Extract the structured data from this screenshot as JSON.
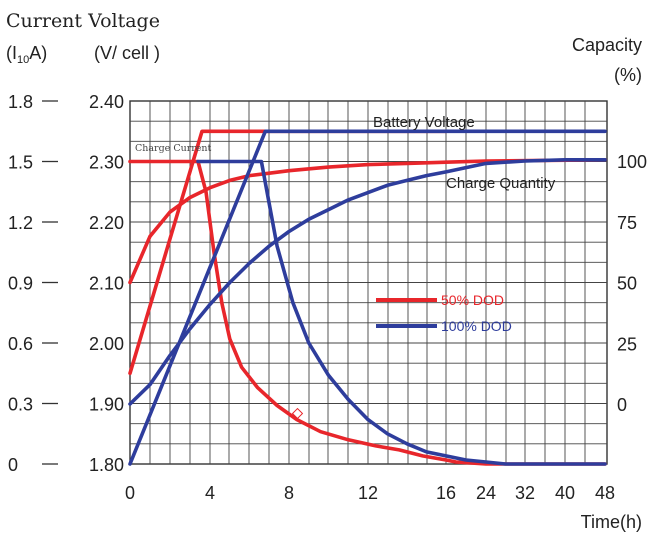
{
  "chart_data": {
    "type": "line",
    "header": {
      "top_label": "Current Voltage",
      "current_axis_label": "(I",
      "current_axis_sub": "10",
      "current_axis_label_end": "A)",
      "voltage_axis_label": "(V/ cell )",
      "capacity_label": "Capacity",
      "capacity_unit": "(%)"
    },
    "xlabel": "Time(h)",
    "x_ticks": [
      "0",
      "4",
      "8",
      "12",
      "16",
      "24",
      "32",
      "40",
      "48"
    ],
    "current_ticks": [
      "1.8",
      "1.5",
      "1.2",
      "0.9",
      "0.6",
      "0.3",
      "0"
    ],
    "voltage_ticks": [
      "2.40",
      "2.30",
      "2.20",
      "2.10",
      "2.00",
      "1.90",
      "1.80"
    ],
    "capacity_ticks": [
      "100",
      "75",
      "50",
      "25",
      "0"
    ],
    "annotations": {
      "battery_voltage": "Battery Voltage",
      "charge_quantity": "Charge Quantity",
      "charge_current": "Charge Current"
    },
    "legend": [
      {
        "name": "50% DOD",
        "color": "#e8262b"
      },
      {
        "name": "100% DOD",
        "color": "#2e3d9c"
      }
    ],
    "grid": true,
    "series": [
      {
        "name": "50% DOD",
        "quantity": "Battery Voltage",
        "color": "#e8262b",
        "axis": "voltage",
        "points": [
          [
            0,
            1.95
          ],
          [
            3.6,
            2.35
          ],
          [
            16,
            2.35
          ]
        ]
      },
      {
        "name": "50% DOD",
        "quantity": "Charge Current",
        "color": "#e8262b",
        "axis": "current",
        "points": [
          [
            0,
            1.5
          ],
          [
            3.4,
            1.5
          ],
          [
            3.8,
            1.35
          ],
          [
            4.2,
            1.05
          ],
          [
            4.6,
            0.8
          ],
          [
            5.0,
            0.62
          ],
          [
            5.6,
            0.48
          ],
          [
            6.4,
            0.38
          ],
          [
            7.4,
            0.29
          ],
          [
            8.4,
            0.22
          ],
          [
            9.6,
            0.16
          ],
          [
            11,
            0.12
          ],
          [
            12.4,
            0.09
          ],
          [
            13.6,
            0.07
          ],
          [
            14.8,
            0.04
          ],
          [
            16,
            0.02
          ],
          [
            18,
            0.01
          ],
          [
            24,
            0.0
          ],
          [
            48,
            0.0
          ]
        ]
      },
      {
        "name": "50% DOD",
        "quantity": "Charge Quantity",
        "color": "#e8262b",
        "axis": "capacity",
        "points": [
          [
            0,
            50
          ],
          [
            1,
            69
          ],
          [
            2,
            79
          ],
          [
            3,
            85
          ],
          [
            4,
            89
          ],
          [
            5,
            92
          ],
          [
            6,
            94
          ],
          [
            7,
            95
          ],
          [
            8,
            96
          ],
          [
            10,
            97.5
          ],
          [
            12,
            98.5
          ],
          [
            14,
            99
          ],
          [
            16,
            99.5
          ],
          [
            24,
            100
          ],
          [
            48,
            100.5
          ]
        ]
      },
      {
        "name": "100% DOD",
        "quantity": "Battery Voltage",
        "color": "#2e3d9c",
        "axis": "voltage",
        "points": [
          [
            0,
            1.8
          ],
          [
            6.8,
            2.35
          ],
          [
            16,
            2.35
          ],
          [
            48,
            2.35
          ]
        ]
      },
      {
        "name": "100% DOD",
        "quantity": "Charge Current",
        "color": "#2e3d9c",
        "axis": "current",
        "points": [
          [
            3.4,
            1.5
          ],
          [
            6.6,
            1.5
          ],
          [
            7.4,
            1.08
          ],
          [
            8.2,
            0.8
          ],
          [
            9.0,
            0.6
          ],
          [
            10,
            0.44
          ],
          [
            11,
            0.32
          ],
          [
            12,
            0.22
          ],
          [
            13,
            0.15
          ],
          [
            14,
            0.1
          ],
          [
            15,
            0.06
          ],
          [
            16,
            0.04
          ],
          [
            20,
            0.02
          ],
          [
            24,
            0.01
          ],
          [
            28,
            0.0
          ],
          [
            48,
            0.0
          ]
        ]
      },
      {
        "name": "100% DOD",
        "quantity": "Charge Quantity",
        "color": "#2e3d9c",
        "axis": "capacity",
        "points": [
          [
            0,
            0
          ],
          [
            1,
            8
          ],
          [
            2,
            20
          ],
          [
            3,
            31
          ],
          [
            4,
            41
          ],
          [
            5,
            50
          ],
          [
            6,
            58
          ],
          [
            7,
            65
          ],
          [
            8,
            71
          ],
          [
            9,
            76
          ],
          [
            10,
            80
          ],
          [
            11,
            84
          ],
          [
            12,
            87
          ],
          [
            13,
            90
          ],
          [
            14,
            92
          ],
          [
            15,
            94
          ],
          [
            16,
            95.5
          ],
          [
            24,
            99
          ],
          [
            32,
            100
          ],
          [
            40,
            100.5
          ],
          [
            48,
            100.5
          ]
        ]
      }
    ]
  }
}
